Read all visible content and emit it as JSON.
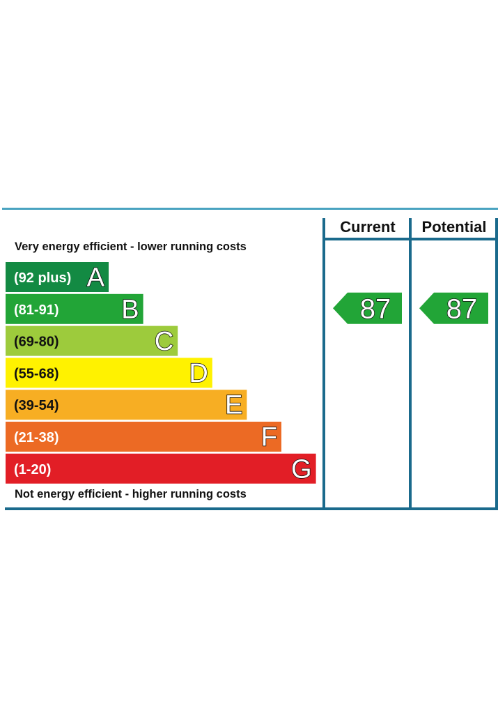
{
  "chart_data": {
    "type": "bar",
    "top_note": "Very energy efficient - lower running costs",
    "bottom_note": "Not energy efficient - higher running costs",
    "columns": [
      "Current",
      "Potential"
    ],
    "bands": [
      {
        "range": "(92 plus)",
        "letter": "A",
        "color": "#138a43"
      },
      {
        "range": "(81-91)",
        "letter": "B",
        "color": "#22a537"
      },
      {
        "range": "(69-80)",
        "letter": "C",
        "color": "#9dcb3c"
      },
      {
        "range": "(55-68)",
        "letter": "D",
        "color": "#fff200"
      },
      {
        "range": "(39-54)",
        "letter": "E",
        "color": "#f7ae23"
      },
      {
        "range": "(21-38)",
        "letter": "F",
        "color": "#ec6a24"
      },
      {
        "range": "(1-20)",
        "letter": "G",
        "color": "#e21e26"
      }
    ],
    "ratings": [
      {
        "column": "Current",
        "value": 87,
        "band": "B",
        "color": "#22a537"
      },
      {
        "column": "Potential",
        "value": 87,
        "band": "B",
        "color": "#22a537"
      }
    ],
    "colors": {
      "frame": "#1a6a8c",
      "top_rule": "#4aa3c0"
    }
  }
}
